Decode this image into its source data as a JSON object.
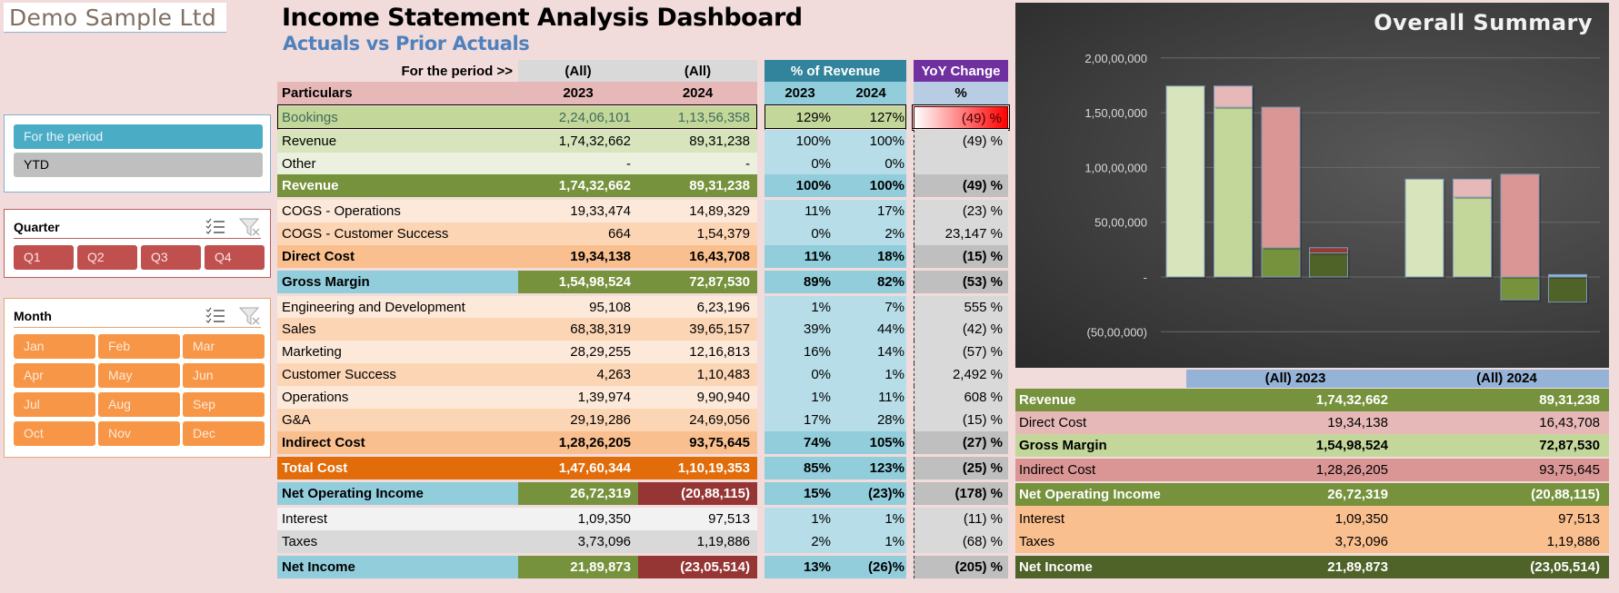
{
  "company": "Demo Sample Ltd",
  "header": {
    "title": "Income Statement Analysis Dashboard",
    "subtitle": "Actuals vs Prior Actuals"
  },
  "slicers": {
    "period": {
      "items": [
        {
          "label": "For the period",
          "selected": true
        },
        {
          "label": "YTD",
          "selected": false
        }
      ]
    },
    "quarter": {
      "title": "Quarter",
      "items": [
        "Q1",
        "Q2",
        "Q3",
        "Q4"
      ]
    },
    "month": {
      "title": "Month",
      "items": [
        "Jan",
        "Feb",
        "Mar",
        "Apr",
        "May",
        "Jun",
        "Jul",
        "Aug",
        "Sep",
        "Oct",
        "Nov",
        "Dec"
      ]
    },
    "icons": {
      "multiselect": "multi-select-icon",
      "clear": "clear-filter-icon"
    }
  },
  "table": {
    "period_label": "For the period >>",
    "period_2023": "(All)",
    "period_2024": "(All)",
    "particulars_label": "Particulars",
    "year_2023": "2023",
    "year_2024": "2024",
    "pct_header": "% of Revenue",
    "pct_2023": "2023",
    "pct_2024": "2024",
    "yoy_header": "YoY Change",
    "yoy_sub": "%",
    "rows": [
      {
        "label": "Bookings",
        "v2023": "2,24,06,101",
        "v2024": "1,13,56,358",
        "p2023": "129%",
        "p2024": "127%",
        "yoy": "(49) %",
        "style": "bookings"
      },
      {
        "label": "Revenue",
        "v2023": "1,74,32,662",
        "v2024": "89,31,238",
        "p2023": "100%",
        "p2024": "100%",
        "yoy": "(49) %",
        "style": "rev-item"
      },
      {
        "label": "Other",
        "v2023": "-",
        "v2024": "-",
        "p2023": "0%",
        "p2024": "0%",
        "yoy": "",
        "style": "rev-item2"
      },
      {
        "label": "Revenue",
        "v2023": "1,74,32,662",
        "v2024": "89,31,238",
        "p2023": "100%",
        "p2024": "100%",
        "yoy": "(49) %",
        "style": "rev-total"
      },
      {
        "label": "COGS - Operations",
        "v2023": "19,33,474",
        "v2024": "14,89,329",
        "p2023": "11%",
        "p2024": "17%",
        "yoy": "(23) %",
        "style": "cost-a"
      },
      {
        "label": "COGS - Customer Success",
        "v2023": "664",
        "v2024": "1,54,379",
        "p2023": "0%",
        "p2024": "2%",
        "yoy": "23,147 %",
        "style": "cost-b",
        "yoy_bar": "green"
      },
      {
        "label": "Direct Cost",
        "v2023": "19,34,138",
        "v2024": "16,43,708",
        "p2023": "11%",
        "p2024": "18%",
        "yoy": "(15) %",
        "style": "cost-total"
      },
      {
        "label": "Gross Margin",
        "v2023": "1,54,98,524",
        "v2024": "72,87,530",
        "p2023": "89%",
        "p2024": "82%",
        "yoy": "(53) %",
        "style": "gm"
      },
      {
        "label": "Engineering and Development",
        "v2023": "95,108",
        "v2024": "6,23,196",
        "p2023": "1%",
        "p2024": "7%",
        "yoy": "555  %",
        "style": "cost-a",
        "yoy_bar": "tiny"
      },
      {
        "label": "Sales",
        "v2023": "68,38,319",
        "v2024": "39,65,157",
        "p2023": "39%",
        "p2024": "44%",
        "yoy": "(42) %",
        "style": "cost-b"
      },
      {
        "label": "Marketing",
        "v2023": "28,29,255",
        "v2024": "12,16,813",
        "p2023": "16%",
        "p2024": "14%",
        "yoy": "(57) %",
        "style": "cost-a"
      },
      {
        "label": "Customer Success",
        "v2023": "4,263",
        "v2024": "1,10,483",
        "p2023": "0%",
        "p2024": "1%",
        "yoy": "2,492  %",
        "style": "cost-b",
        "yoy_bar": "small"
      },
      {
        "label": "Operations",
        "v2023": "1,39,974",
        "v2024": "9,90,940",
        "p2023": "1%",
        "p2024": "11%",
        "yoy": "608  %",
        "style": "cost-a",
        "yoy_bar": "tiny"
      },
      {
        "label": "G&A",
        "v2023": "29,19,286",
        "v2024": "24,69,056",
        "p2023": "17%",
        "p2024": "28%",
        "yoy": "(15) %",
        "style": "cost-b"
      },
      {
        "label": "Indirect Cost",
        "v2023": "1,28,26,205",
        "v2024": "93,75,645",
        "p2023": "74%",
        "p2024": "105%",
        "yoy": "(27) %",
        "style": "cost-total"
      },
      {
        "label": "Total Cost",
        "v2023": "1,47,60,344",
        "v2024": "1,10,19,353",
        "p2023": "85%",
        "p2024": "123%",
        "yoy": "(25) %",
        "style": "total-cost"
      },
      {
        "label": "Net Operating Income",
        "v2023": "26,72,319",
        "v2024": "(20,88,115)",
        "p2023": "15%",
        "p2024": "(23)%",
        "yoy": "(178) %",
        "style": "noi"
      },
      {
        "label": "Interest",
        "v2023": "1,09,350",
        "v2024": "97,513",
        "p2023": "1%",
        "p2024": "1%",
        "yoy": "(11) %",
        "style": "other-a"
      },
      {
        "label": "Taxes",
        "v2023": "3,73,096",
        "v2024": "1,19,886",
        "p2023": "2%",
        "p2024": "1%",
        "yoy": "(68) %",
        "style": "other-b"
      },
      {
        "label": "Net Income",
        "v2023": "21,89,873",
        "v2024": "(23,05,514)",
        "p2023": "13%",
        "p2024": "(26)%",
        "yoy": "(205) %",
        "style": "noi"
      }
    ]
  },
  "summary": {
    "header_2023": "(All) 2023",
    "header_2024": "(All) 2024",
    "rows": [
      {
        "label": "Revenue",
        "v2023": "1,74,32,662",
        "v2024": "89,31,238",
        "bg": "#76923c",
        "fg": "#ffffff",
        "bold": true
      },
      {
        "label": "Direct Cost",
        "v2023": "19,34,138",
        "v2024": "16,43,708",
        "bg": "#e6b8b7",
        "fg": "#000000",
        "bold": false
      },
      {
        "label": "Gross Margin",
        "v2023": "1,54,98,524",
        "v2024": "72,87,530",
        "bg": "#c4d79b",
        "fg": "#000000",
        "bold": true
      },
      {
        "label": "Indirect Cost",
        "v2023": "1,28,26,205",
        "v2024": "93,75,645",
        "bg": "#da9694",
        "fg": "#000000",
        "bold": false
      },
      {
        "label": "Net Operating Income",
        "v2023": "26,72,319",
        "v2024": "(20,88,115)",
        "bg": "#76923c",
        "fg": "#ffffff",
        "bold": true
      },
      {
        "label": "Interest",
        "v2023": "1,09,350",
        "v2024": "97,513",
        "bg": "#fabf8f",
        "fg": "#000000",
        "bold": false
      },
      {
        "label": "Taxes",
        "v2023": "3,73,096",
        "v2024": "1,19,886",
        "bg": "#fabf8f",
        "fg": "#000000",
        "bold": false
      },
      {
        "label": "Net Income",
        "v2023": "21,89,873",
        "v2024": "(23,05,514)",
        "bg": "#4f6228",
        "fg": "#ffffff",
        "bold": true
      }
    ]
  },
  "chart_data": {
    "type": "bar",
    "title": "Overall Summary",
    "subtype": "stacked-waterfall",
    "ylim": [
      -6000000,
      20000000
    ],
    "yticks": [
      {
        "value": 20000000,
        "label": "2,00,00,000"
      },
      {
        "value": 15000000,
        "label": "1,50,00,000"
      },
      {
        "value": 10000000,
        "label": "1,00,00,000"
      },
      {
        "value": 5000000,
        "label": "50,00,000"
      },
      {
        "value": 0,
        "label": "-"
      },
      {
        "value": -5000000,
        "label": "(50,00,000)"
      }
    ],
    "grid": true,
    "categories": [
      "(All) 2023",
      "(All) 2024"
    ],
    "groups": [
      {
        "category": "(All) 2023",
        "bars": [
          {
            "name": "Revenue",
            "segments": [
              {
                "series": "Revenue",
                "from": 0,
                "to": 17432662,
                "color": "#d8e4bc"
              }
            ]
          },
          {
            "name": "Gross Margin",
            "segments": [
              {
                "series": "Gross Margin",
                "from": 0,
                "to": 15498524,
                "color": "#c4d79b"
              },
              {
                "series": "Direct Cost",
                "from": 15498524,
                "to": 17432662,
                "color": "#e6b8b7"
              }
            ]
          },
          {
            "name": "Net Operating Income",
            "segments": [
              {
                "series": "Net Operating Income",
                "from": 0,
                "to": 2672319,
                "color": "#76923c"
              },
              {
                "series": "Indirect Cost",
                "from": 2672319,
                "to": 15498524,
                "color": "#da9694"
              }
            ]
          },
          {
            "name": "Net Income",
            "segments": [
              {
                "series": "Net Income",
                "from": 0,
                "to": 2189873,
                "color": "#4f6228"
              },
              {
                "series": "Interest & Taxes",
                "from": 2189873,
                "to": 2672319,
                "color": "#953735"
              }
            ]
          }
        ]
      },
      {
        "category": "(All) 2024",
        "bars": [
          {
            "name": "Revenue",
            "segments": [
              {
                "series": "Revenue",
                "from": 0,
                "to": 8931238,
                "color": "#d8e4bc"
              }
            ]
          },
          {
            "name": "Gross Margin",
            "segments": [
              {
                "series": "Gross Margin",
                "from": 0,
                "to": 7287530,
                "color": "#c4d79b"
              },
              {
                "series": "Direct Cost",
                "from": 7287530,
                "to": 8931238,
                "color": "#e6b8b7"
              }
            ]
          },
          {
            "name": "Net Operating Income",
            "segments": [
              {
                "series": "Net Operating Income",
                "from": -2088115,
                "to": 0,
                "color": "#76923c"
              },
              {
                "series": "Indirect Cost",
                "from": 0,
                "to": 9375645,
                "color": "#da9694"
              }
            ]
          },
          {
            "name": "Net Income",
            "segments": [
              {
                "series": "Net Income",
                "from": -2305514,
                "to": 0,
                "color": "#4f6228"
              },
              {
                "series": "Interest & Taxes",
                "from": 0,
                "to": 217399,
                "color": "#8eb4e3"
              }
            ]
          }
        ]
      }
    ]
  }
}
